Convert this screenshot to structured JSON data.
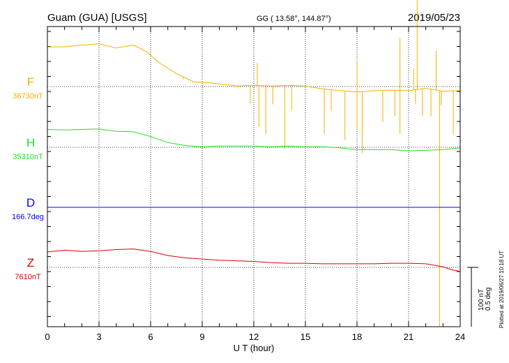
{
  "header": {
    "station": "Guam (GUA)  [USGS]",
    "coords": "GG ( 13.58°, 144.87°)",
    "date": "2019/05/23"
  },
  "side_note": "Plotted at 2019/06/27 10:18 UT",
  "scale_note": [
    "100 nT",
    "0.5 deg"
  ],
  "colors": {
    "F": "#f5b000",
    "H": "#22dd22",
    "D": "#0000ff",
    "Z": "#dd0000"
  },
  "chart_data": {
    "type": "line",
    "xlabel": "U T (hour)",
    "xlim": [
      0,
      24
    ],
    "x_ticks": [
      "0",
      "3",
      "6",
      "9",
      "12",
      "15",
      "18",
      "21",
      "24"
    ],
    "grid": true,
    "scale_bar": {
      "nT": 100,
      "deg": 0.5
    },
    "series": [
      {
        "name": "F",
        "baseline_label": "36730nT",
        "color": "#f5b000",
        "baseline": 36730,
        "units": "nT",
        "points": [
          [
            0,
            36797
          ],
          [
            1,
            36797
          ],
          [
            2,
            36800
          ],
          [
            3,
            36802
          ],
          [
            4,
            36795
          ],
          [
            5,
            36800
          ],
          [
            5.8,
            36788
          ],
          [
            6.5,
            36770
          ],
          [
            7.5,
            36752
          ],
          [
            8.5,
            36738
          ],
          [
            9.5,
            36736
          ],
          [
            10.5,
            36733
          ],
          [
            11,
            36731
          ],
          [
            12,
            36732
          ],
          [
            13,
            36731
          ],
          [
            14,
            36732
          ],
          [
            15,
            36731
          ],
          [
            16,
            36726
          ],
          [
            17,
            36723
          ],
          [
            18,
            36721
          ],
          [
            19,
            36723
          ],
          [
            20,
            36724
          ],
          [
            21,
            36723
          ],
          [
            22,
            36727
          ],
          [
            23,
            36722
          ],
          [
            24,
            36723
          ]
        ],
        "spikes": [
          [
            11.8,
            36700
          ],
          [
            12.3,
            36662
          ],
          [
            12.7,
            36650
          ],
          [
            13.1,
            36700
          ],
          [
            13.8,
            36626
          ],
          [
            14.2,
            36690
          ],
          [
            16.1,
            36650
          ],
          [
            16.5,
            36690
          ],
          [
            17.3,
            36640
          ],
          [
            18.0,
            36656
          ],
          [
            18.3,
            36618
          ],
          [
            19.5,
            36670
          ],
          [
            20.2,
            36680
          ],
          [
            20.5,
            36650
          ],
          [
            21.4,
            36700
          ],
          [
            21.8,
            36680
          ],
          [
            22.3,
            36680
          ],
          [
            22.9,
            36698
          ],
          [
            23.6,
            36650
          ],
          [
            12.2,
            36770
          ],
          [
            18.0,
            36775
          ],
          [
            20.5,
            36812
          ],
          [
            21.5,
            36890
          ],
          [
            21.3,
            36760
          ],
          [
            22.6,
            36790
          ],
          [
            7.9,
            36742
          ],
          [
            22.8,
            36140
          ]
        ]
      },
      {
        "name": "H",
        "baseline_label": "35310nT",
        "color": "#22dd22",
        "baseline": 35310,
        "units": "nT",
        "points": [
          [
            0,
            35340
          ],
          [
            1,
            35339
          ],
          [
            2,
            35340
          ],
          [
            3,
            35341
          ],
          [
            4,
            35337
          ],
          [
            5,
            35336
          ],
          [
            6,
            35328
          ],
          [
            7,
            35318
          ],
          [
            8,
            35313
          ],
          [
            9,
            35311
          ],
          [
            10,
            35312
          ],
          [
            11,
            35312
          ],
          [
            12,
            35312
          ],
          [
            13,
            35311
          ],
          [
            14,
            35312
          ],
          [
            15,
            35311
          ],
          [
            16,
            35311
          ],
          [
            17,
            35309
          ],
          [
            18,
            35306
          ],
          [
            19,
            35306
          ],
          [
            20,
            35306
          ],
          [
            21,
            35304
          ],
          [
            22,
            35305
          ],
          [
            23,
            35306
          ],
          [
            24,
            35309
          ]
        ]
      },
      {
        "name": "D",
        "baseline_label": "166.7deg",
        "color": "#0000ff",
        "baseline": 166.7,
        "units": "deg",
        "points": [
          [
            0,
            166.7
          ],
          [
            6,
            166.7
          ],
          [
            12,
            166.7
          ],
          [
            18,
            166.7
          ],
          [
            24,
            166.7
          ]
        ]
      },
      {
        "name": "Z",
        "baseline_label": "7610nT",
        "color": "#dd0000",
        "baseline": 7610,
        "units": "nT",
        "points": [
          [
            0,
            7636
          ],
          [
            1,
            7639
          ],
          [
            2,
            7637
          ],
          [
            3,
            7638
          ],
          [
            4,
            7640
          ],
          [
            5,
            7641
          ],
          [
            6,
            7637
          ],
          [
            7,
            7630
          ],
          [
            8,
            7626
          ],
          [
            9,
            7624
          ],
          [
            10,
            7622
          ],
          [
            11,
            7621
          ],
          [
            12,
            7620
          ],
          [
            13,
            7618
          ],
          [
            14,
            7617
          ],
          [
            15,
            7617
          ],
          [
            16,
            7616
          ],
          [
            17,
            7616
          ],
          [
            18,
            7616
          ],
          [
            19,
            7616
          ],
          [
            20,
            7617
          ],
          [
            21,
            7617
          ],
          [
            22,
            7616
          ],
          [
            23,
            7611
          ],
          [
            23.5,
            7606
          ],
          [
            24,
            7603
          ]
        ]
      }
    ]
  }
}
